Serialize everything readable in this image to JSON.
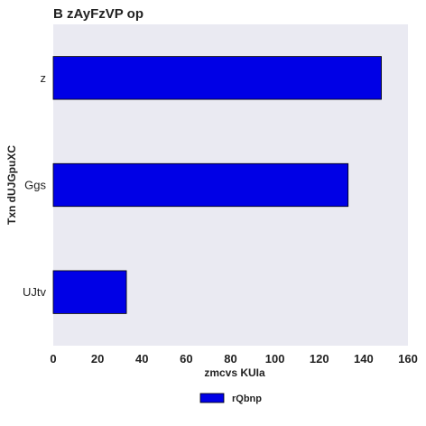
{
  "chart_data": {
    "type": "bar",
    "orientation": "horizontal",
    "title": "B  zAyFzVP op",
    "xlabel": "zmcvs KUIa",
    "ylabel": "Txn dUJGpuXC",
    "categories": [
      "UJtv",
      "Ggs",
      "z"
    ],
    "series": [
      {
        "name": "rQbnp",
        "values": [
          33,
          133,
          148
        ],
        "color": "#0000e6"
      }
    ],
    "xlim": [
      0,
      160
    ],
    "xticks": [
      "0",
      "20",
      "40",
      "60",
      "80",
      "100",
      "120",
      "140",
      "160"
    ],
    "grid": false,
    "background": "#eaeaf2",
    "legend_position": "bottom-center"
  }
}
